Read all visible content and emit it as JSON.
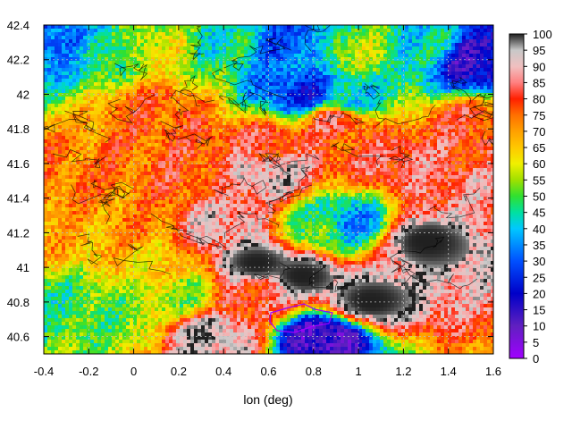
{
  "chart_data": {
    "type": "heatmap",
    "title": "",
    "xlabel": "lon (deg)",
    "ylabel": "",
    "xlim": [
      -0.4,
      1.6
    ],
    "ylim": [
      40.5,
      42.4
    ],
    "x_ticks": [
      -0.4,
      -0.2,
      0,
      0.2,
      0.4,
      0.6,
      0.8,
      1,
      1.2,
      1.4,
      1.6
    ],
    "x_tick_labels": [
      "-0.4",
      "-0.2",
      "0",
      "0.2",
      "0.4",
      "0.6",
      "0.8",
      "1",
      "1.2",
      "1.4",
      "1.6"
    ],
    "y_ticks": [
      40.6,
      40.8,
      41,
      41.2,
      41.4,
      41.6,
      41.8,
      42,
      42.2,
      42.4
    ],
    "y_tick_labels": [
      "40.6",
      "40.8",
      "41",
      "41.2",
      "41.4",
      "41.6",
      "41.8",
      "42",
      "42.2",
      "42.4"
    ],
    "colorbar": {
      "range": [
        0,
        100
      ],
      "ticks": [
        0,
        5,
        10,
        15,
        20,
        25,
        30,
        35,
        40,
        45,
        50,
        55,
        60,
        65,
        70,
        75,
        80,
        85,
        90,
        95,
        100
      ],
      "tick_labels": [
        "0",
        "5",
        "10",
        "15",
        "20",
        "25",
        "30",
        "35",
        "40",
        "45",
        "50",
        "55",
        "60",
        "65",
        "70",
        "75",
        "80",
        "85",
        "90",
        "95",
        "100"
      ],
      "palette": [
        [
          0,
          "#a000ff"
        ],
        [
          10,
          "#6020c0"
        ],
        [
          20,
          "#0000c8"
        ],
        [
          30,
          "#0050ff"
        ],
        [
          40,
          "#00c8ff"
        ],
        [
          45,
          "#00e0a0"
        ],
        [
          50,
          "#30e030"
        ],
        [
          55,
          "#a0e000"
        ],
        [
          60,
          "#f0f000"
        ],
        [
          65,
          "#ffc800"
        ],
        [
          70,
          "#ffa000"
        ],
        [
          75,
          "#ff7000"
        ],
        [
          80,
          "#ff2000"
        ],
        [
          85,
          "#ff8080"
        ],
        [
          90,
          "#f0c0c0"
        ],
        [
          95,
          "#c8c8c8"
        ],
        [
          100,
          "#202020"
        ]
      ]
    },
    "grid": true,
    "legend": "colorbar-right",
    "field_description_regions": [
      {
        "lon": 1.05,
        "lat": 40.8,
        "value": 100
      },
      {
        "lon": 0.75,
        "lat": 40.95,
        "value": 100
      },
      {
        "lon": 0.55,
        "lat": 41.02,
        "value": 100
      },
      {
        "lon": 1.3,
        "lat": 41.15,
        "value": 100
      },
      {
        "lon": 0.35,
        "lat": 40.6,
        "value": 95
      },
      {
        "lon": -0.1,
        "lat": 40.7,
        "value": 52
      },
      {
        "lon": -0.3,
        "lat": 40.78,
        "value": 48
      },
      {
        "lon": 0.1,
        "lat": 41.0,
        "value": 64
      },
      {
        "lon": -0.25,
        "lat": 41.2,
        "value": 68
      },
      {
        "lon": 0.3,
        "lat": 41.5,
        "value": 78
      },
      {
        "lon": 0.6,
        "lat": 41.7,
        "value": 80
      },
      {
        "lon": 0.1,
        "lat": 41.9,
        "value": 77
      },
      {
        "lon": 0.9,
        "lat": 41.85,
        "value": 82
      },
      {
        "lon": 1.2,
        "lat": 41.6,
        "value": 84
      },
      {
        "lon": 0.85,
        "lat": 41.22,
        "value": 50
      },
      {
        "lon": 0.95,
        "lat": 41.25,
        "value": 35
      },
      {
        "lon": 1.55,
        "lat": 41.4,
        "value": 86
      },
      {
        "lon": 1.5,
        "lat": 41.8,
        "value": 80
      },
      {
        "lon": 0.4,
        "lat": 41.25,
        "value": 90
      },
      {
        "lon": 0.6,
        "lat": 41.55,
        "value": 93
      },
      {
        "lon": -0.35,
        "lat": 42.3,
        "value": 30
      },
      {
        "lon": -0.15,
        "lat": 42.25,
        "value": 45
      },
      {
        "lon": 0.1,
        "lat": 42.25,
        "value": 60
      },
      {
        "lon": 0.4,
        "lat": 42.3,
        "value": 45
      },
      {
        "lon": 0.7,
        "lat": 42.3,
        "value": 30
      },
      {
        "lon": 1.0,
        "lat": 42.25,
        "value": 55
      },
      {
        "lon": 1.3,
        "lat": 42.28,
        "value": 42
      },
      {
        "lon": 1.53,
        "lat": 42.2,
        "value": 15
      },
      {
        "lon": 0.75,
        "lat": 42.0,
        "value": 25
      },
      {
        "lon": 0.95,
        "lat": 41.97,
        "value": 40
      },
      {
        "lon": -0.3,
        "lat": 41.5,
        "value": 74
      },
      {
        "lon": 0.0,
        "lat": 41.3,
        "value": 72
      },
      {
        "lon": 0.2,
        "lat": 40.85,
        "value": 55
      },
      {
        "lon": 0.55,
        "lat": 40.85,
        "value": 82
      },
      {
        "lon": 0.85,
        "lat": 40.6,
        "value": 10
      }
    ]
  }
}
